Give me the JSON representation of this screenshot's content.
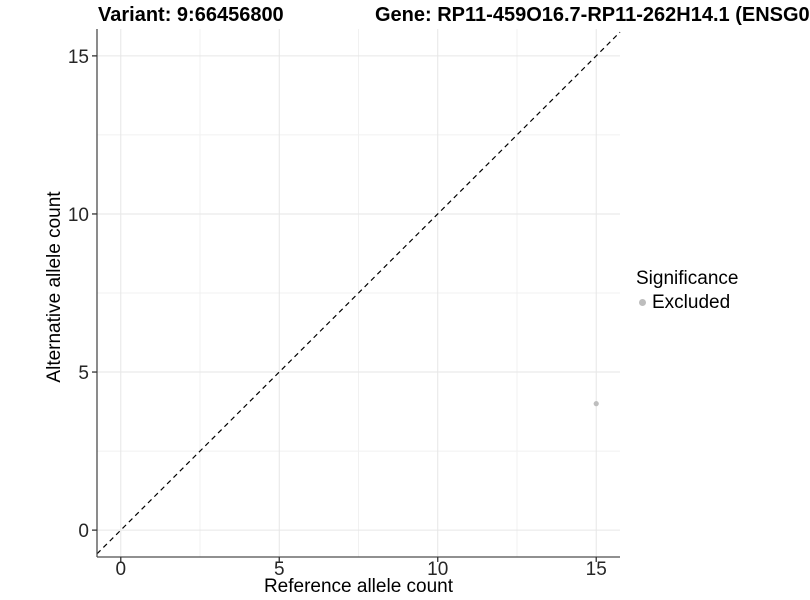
{
  "titles": {
    "variant": "Variant: 9:66456800",
    "gene": "Gene: RP11-459O16.7-RP11-262H14.1 (ENSG0"
  },
  "chart_data": {
    "type": "scatter",
    "title": "Variant: 9:66456800    Gene: RP11-459O16.7-RP11-262H14.1 (ENSG0",
    "xlabel": "Reference allele count",
    "ylabel": "Alternative allele count",
    "x_ticks": [
      0,
      5,
      10,
      15
    ],
    "y_ticks": [
      0,
      5,
      10,
      15
    ],
    "x_minor_gridlines": [
      2.5,
      7.5,
      12.5
    ],
    "y_minor_gridlines": [
      2.5,
      7.5,
      12.5
    ],
    "xlim": [
      -0.75,
      15.75
    ],
    "ylim": [
      -0.85,
      15.85
    ],
    "grid": true,
    "points": [
      {
        "x": 15,
        "y": 4,
        "series": "Excluded"
      }
    ],
    "reference_line": {
      "type": "identity y=x",
      "style": "dashed",
      "color": "#000000"
    },
    "legend": {
      "title": "Significance",
      "position": "right",
      "entries": [
        {
          "label": "Excluded",
          "color": "#bdbdbd"
        }
      ]
    },
    "colors": {
      "background": "#ffffff",
      "grid_major": "#e6e6e6",
      "grid_minor": "#f1f1f1",
      "axis_line": "#4d4d4d",
      "tick_mark": "#333333",
      "axis_text": "#262626",
      "axis_title": "#000000",
      "point": "#bebebe",
      "legend_key": "#b5b5b5",
      "ref_line": "#000000"
    }
  }
}
